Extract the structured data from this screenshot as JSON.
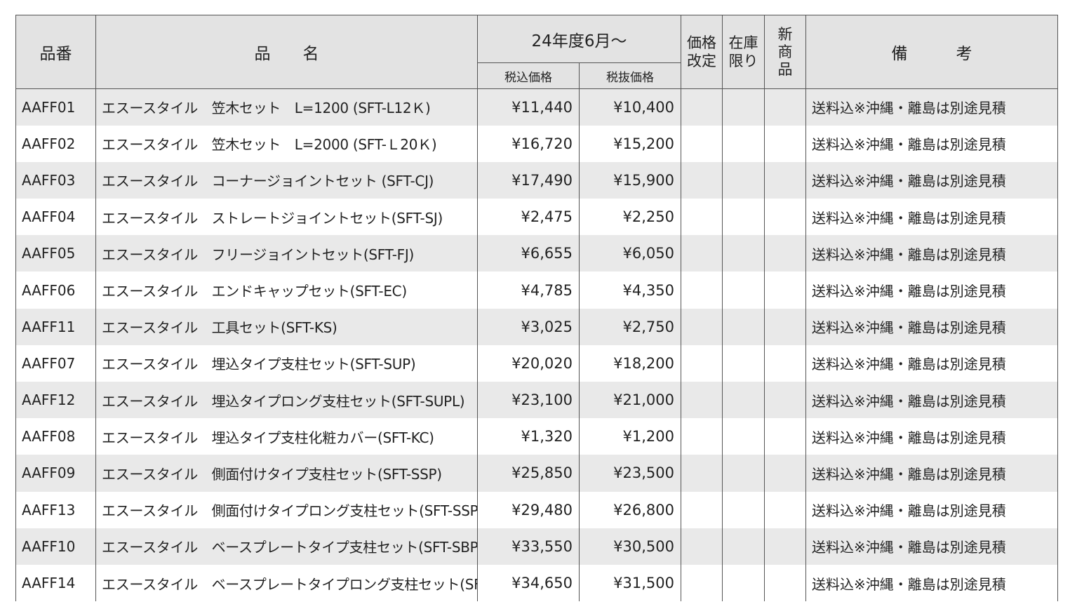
{
  "header": {
    "code": "品番",
    "name": "品　　名",
    "period": "24年度6月～",
    "price_incl": "税込価格",
    "price_excl": "税抜価格",
    "price_revision": "価格\n改定",
    "stock_limited": "在庫\n限り",
    "new_product": "新\n商\n品",
    "remarks": "備　　　考"
  },
  "rows": [
    {
      "code": "AAFF01",
      "name": "エスースタイル　笠木セット　L=1200 (SFT-L12Ｋ)",
      "price_incl": "¥11,440",
      "price_excl": "¥10,400",
      "note": "送料込※沖縄・離島は別途見積"
    },
    {
      "code": "AAFF02",
      "name": "エスースタイル　笠木セット　L=2000 (SFT-Ｌ20Ｋ)",
      "price_incl": "¥16,720",
      "price_excl": "¥15,200",
      "note": "送料込※沖縄・離島は別途見積"
    },
    {
      "code": "AAFF03",
      "name": "エスースタイル　コーナージョイントセット (SFT-CJ)",
      "price_incl": "¥17,490",
      "price_excl": "¥15,900",
      "note": "送料込※沖縄・離島は別途見積"
    },
    {
      "code": "AAFF04",
      "name": "エスースタイル　ストレートジョイントセット(SFT-SJ)",
      "price_incl": "¥2,475",
      "price_excl": "¥2,250",
      "note": "送料込※沖縄・離島は別途見積"
    },
    {
      "code": "AAFF05",
      "name": "エスースタイル　フリージョイントセット(SFT-FJ)",
      "price_incl": "¥6,655",
      "price_excl": "¥6,050",
      "note": "送料込※沖縄・離島は別途見積"
    },
    {
      "code": "AAFF06",
      "name": "エスースタイル　エンドキャップセット(SFT-EC)",
      "price_incl": "¥4,785",
      "price_excl": "¥4,350",
      "note": "送料込※沖縄・離島は別途見積"
    },
    {
      "code": "AAFF11",
      "name": "エスースタイル　工具セット(SFT-KS)",
      "price_incl": "¥3,025",
      "price_excl": "¥2,750",
      "note": "送料込※沖縄・離島は別途見積"
    },
    {
      "code": "AAFF07",
      "name": "エスースタイル　埋込タイプ支柱セット(SFT-SUP)",
      "price_incl": "¥20,020",
      "price_excl": "¥18,200",
      "note": "送料込※沖縄・離島は別途見積"
    },
    {
      "code": "AAFF12",
      "name": "エスースタイル　埋込タイプロング支柱セット(SFT-SUPL)",
      "price_incl": "¥23,100",
      "price_excl": "¥21,000",
      "note": "送料込※沖縄・離島は別途見積"
    },
    {
      "code": "AAFF08",
      "name": "エスースタイル　埋込タイプ支柱化粧カバー(SFT-KC)",
      "price_incl": "¥1,320",
      "price_excl": "¥1,200",
      "note": "送料込※沖縄・離島は別途見積"
    },
    {
      "code": "AAFF09",
      "name": "エスースタイル　側面付けタイプ支柱セット(SFT-SSP)",
      "price_incl": "¥25,850",
      "price_excl": "¥23,500",
      "note": "送料込※沖縄・離島は別途見積"
    },
    {
      "code": "AAFF13",
      "name": "エスースタイル　側面付けタイプロング支柱セット(SFT-SSPL)",
      "price_incl": "¥29,480",
      "price_excl": "¥26,800",
      "note": "送料込※沖縄・離島は別途見積"
    },
    {
      "code": "AAFF10",
      "name": "エスースタイル　ベースプレートタイプ支柱セット(SFT-SBP)",
      "price_incl": "¥33,550",
      "price_excl": "¥30,500",
      "note": "送料込※沖縄・離島は別途見積"
    },
    {
      "code": "AAFF14",
      "name": "エスースタイル　ベースプレートタイプロング支柱セット(SFT-SBPL)",
      "price_incl": "¥34,650",
      "price_excl": "¥31,500",
      "note": "送料込※沖縄・離島は別途見積"
    }
  ]
}
